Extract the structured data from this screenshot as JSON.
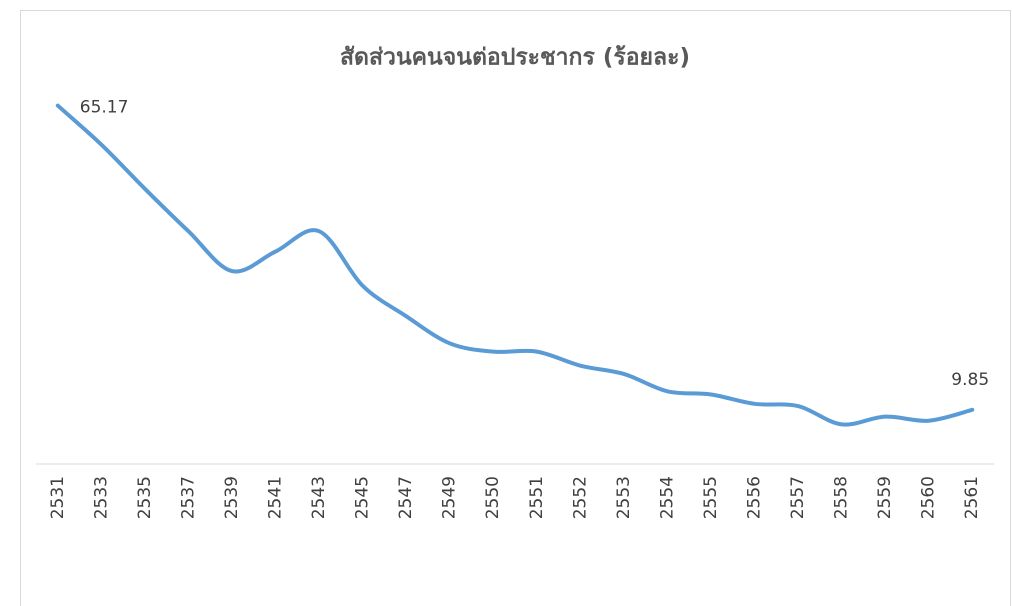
{
  "chart_data": {
    "type": "line",
    "title": "สัดส่วนคนจนต่อประชากร (ร้อยละ)",
    "categories": [
      "2531",
      "2533",
      "2535",
      "2537",
      "2539",
      "2541",
      "2543",
      "2545",
      "2547",
      "2549",
      "2550",
      "2551",
      "2552",
      "2553",
      "2554",
      "2555",
      "2556",
      "2557",
      "2558",
      "2559",
      "2560",
      "2561"
    ],
    "values": [
      65.17,
      58.07,
      50.04,
      42.33,
      35.08,
      38.63,
      42.33,
      32.43,
      26.88,
      21.94,
      20.43,
      20.43,
      17.88,
      16.37,
      13.22,
      12.64,
      10.94,
      10.53,
      7.21,
      8.61,
      7.87,
      9.85
    ],
    "color": "#5b9bd5",
    "ylim": [
      0,
      70
    ]
  }
}
